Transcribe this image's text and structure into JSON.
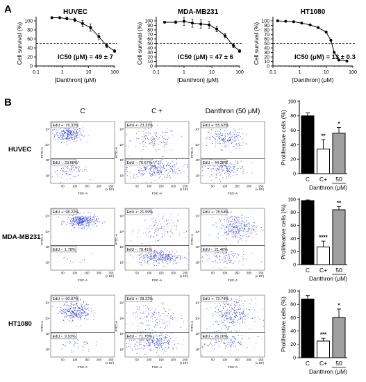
{
  "panels": {
    "a": "A",
    "b": "B"
  },
  "chart_data": [
    {
      "type": "line",
      "panel": "A",
      "title": "HUVEC",
      "xlabel": "[Danthron] (μM)",
      "ylabel": "Cell survival (%)",
      "x_scale": "log",
      "xlim": [
        0.1,
        100
      ],
      "ylim": [
        0,
        100
      ],
      "x_ticks": [
        "0.1",
        "1",
        "10",
        "100"
      ],
      "y_ticks": [
        "0",
        "20",
        "40",
        "60",
        "80",
        "100"
      ],
      "threshold": 50,
      "annotation": "IC50 (μM) = 49 ± 7",
      "x": [
        0.4,
        0.8,
        1.5,
        3,
        6,
        12,
        25,
        50,
        100
      ],
      "y": [
        107,
        107,
        105,
        102,
        94,
        85,
        65,
        45,
        33
      ],
      "err": [
        2,
        2,
        3,
        4,
        7,
        8,
        7,
        4,
        3
      ]
    },
    {
      "type": "line",
      "panel": "A",
      "title": "MDA-MB231",
      "xlabel": "[Danthron] (μM)",
      "ylabel": "Cell survival (%)",
      "x_scale": "log",
      "xlim": [
        0.1,
        100
      ],
      "ylim": [
        0,
        100
      ],
      "x_ticks": [
        "0.1",
        "1",
        "10",
        "100"
      ],
      "y_ticks": [
        "0",
        "10",
        "20",
        "30",
        "40",
        "50",
        "60",
        "70",
        "80",
        "90",
        "100"
      ],
      "threshold": 50,
      "annotation": "IC50 (μM) = 47 ± 6",
      "x": [
        0.2,
        0.5,
        1,
        2,
        4,
        8,
        15,
        30,
        60,
        100
      ],
      "y": [
        97,
        97,
        99,
        95,
        93,
        91,
        82,
        67,
        45,
        33
      ],
      "err": [
        2,
        3,
        9,
        9,
        10,
        8,
        6,
        5,
        4,
        3
      ]
    },
    {
      "type": "line",
      "panel": "A",
      "title": "HT1080",
      "xlabel": "[Danthron] (μM)",
      "ylabel": "Cell survival (%)",
      "x_scale": "log",
      "xlim": [
        0.1,
        100
      ],
      "ylim": [
        0,
        100
      ],
      "x_ticks": [
        "0.1",
        "1",
        "10",
        "100"
      ],
      "y_ticks": [
        "0",
        "10",
        "20",
        "30",
        "40",
        "50",
        "60",
        "70",
        "80",
        "90",
        "100"
      ],
      "threshold": 50,
      "annotation": "IC50 (μM) = 13 ± 0.3",
      "x": [
        0.15,
        0.3,
        0.6,
        1.2,
        2.5,
        5,
        10,
        15,
        20,
        30,
        60
      ],
      "y": [
        100,
        99,
        98,
        95,
        91,
        85,
        75,
        57,
        30,
        13,
        11
      ],
      "err": [
        1,
        1,
        1,
        1,
        1,
        1,
        2,
        2,
        2,
        1,
        1
      ]
    },
    {
      "type": "bar",
      "panel": "B",
      "cell": "HUVEC",
      "ylabel": "Proliferative cells (%)",
      "xlabel": "Danthron (μM)",
      "categories": [
        "C",
        "C+",
        "50"
      ],
      "values": [
        80,
        34,
        56
      ],
      "err": [
        4,
        13,
        8
      ],
      "significance": [
        "",
        "**",
        "*"
      ],
      "colors": [
        "#000000",
        "#ffffff",
        "#a0a0a0"
      ],
      "ylim": [
        0,
        100
      ],
      "y_ticks": [
        "0",
        "20",
        "40",
        "60",
        "80",
        "100"
      ]
    },
    {
      "type": "bar",
      "panel": "B",
      "cell": "MDA-MB231",
      "ylabel": "Proliferative cells (%)",
      "xlabel": "Danthron (μM)",
      "categories": [
        "C",
        "C+",
        "50"
      ],
      "values": [
        98,
        27,
        84
      ],
      "err": [
        1,
        9,
        5
      ],
      "significance": [
        "",
        "****",
        "**"
      ],
      "colors": [
        "#000000",
        "#ffffff",
        "#a0a0a0"
      ],
      "ylim": [
        0,
        100
      ],
      "y_ticks": [
        "0",
        "20",
        "40",
        "60",
        "80",
        "100"
      ]
    },
    {
      "type": "bar",
      "panel": "B",
      "cell": "HT1080",
      "ylabel": "Proliferative cells (%)",
      "xlabel": "Danthron (μM)",
      "categories": [
        "C",
        "C+",
        "50"
      ],
      "values": [
        88,
        25,
        60
      ],
      "err": [
        5,
        4,
        13
      ],
      "significance": [
        "",
        "***",
        "*"
      ],
      "colors": [
        "#000000",
        "#ffffff",
        "#a0a0a0"
      ],
      "ylim": [
        0,
        100
      ],
      "y_ticks": [
        "0",
        "20",
        "40",
        "60",
        "80",
        "100"
      ]
    }
  ],
  "facs": {
    "columns": [
      "C",
      "C +",
      "Danthron (50 μM)"
    ],
    "rows": [
      "HUVEC",
      "MDA-MB231",
      "HT1080"
    ],
    "xlabel": "FSC-A",
    "ylabel": "FITC-A",
    "x_multiplier": "(x 10³)",
    "x_ticks": [
      "50",
      "100",
      "150",
      "200",
      "250"
    ],
    "y_ticks": [
      "10²",
      "10³",
      "10⁴",
      "10⁵"
    ],
    "point_color": "#2a3ee6",
    "gates": [
      [
        {
          "upper": "EdU +: 76.32%",
          "lower": "EdU -: 23.68%"
        },
        {
          "upper": "EdU +: 23.33%",
          "lower": "EdU -: 76.67%"
        },
        {
          "upper": "EdU +: 55.62%",
          "lower": "EdU -: 44.38%"
        }
      ],
      [
        {
          "upper": "EdU +: 98.22%",
          "lower": "EdU -: 1.78%"
        },
        {
          "upper": "EdU +: 21.59%",
          "lower": "EdU -: 78.41%"
        },
        {
          "upper": "EdU +: 78.54%",
          "lower": "EdU -: 21.46%"
        }
      ],
      [
        {
          "upper": "EdU +: 90.07%",
          "lower": "EdU -: 9.93%"
        },
        {
          "upper": "EdU +: 28.22%",
          "lower": "EdU -: 71.78%"
        },
        {
          "upper": "EdU +: 73.74%",
          "lower": "EdU -: 26.26%"
        }
      ]
    ]
  }
}
